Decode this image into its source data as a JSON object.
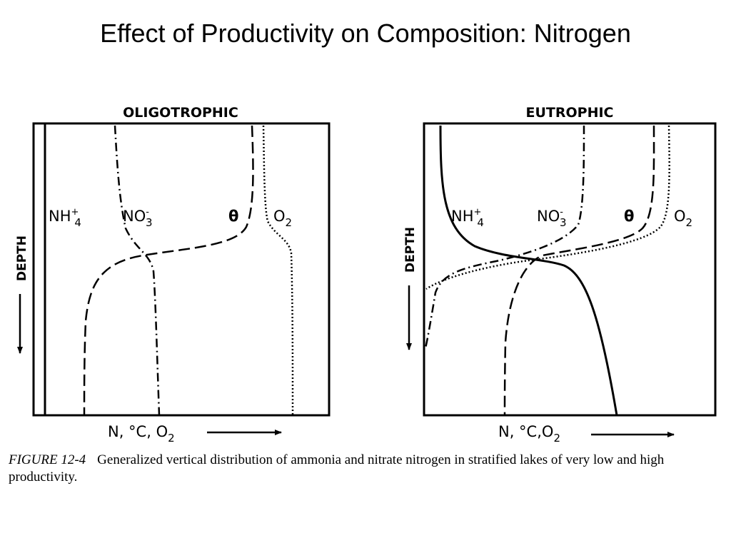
{
  "slide": {
    "title": "Effect of Productivity on Composition: Nitrogen"
  },
  "figure": {
    "panels": [
      {
        "title": "OLIGOTROPHIC",
        "y_axis_label": "DEPTH",
        "x_axis_label": "N, °C, O",
        "x_axis_subscript": "2",
        "curve_labels": {
          "nh4": {
            "base": "NH",
            "sup": "+",
            "sub": "4"
          },
          "no3": {
            "base": "NO",
            "sup": "-",
            "sub": "3"
          },
          "theta": {
            "base": "θ"
          },
          "o2": {
            "base": "O",
            "sub": "2"
          }
        }
      },
      {
        "title": "EUTROPHIC",
        "y_axis_label": "DEPTH",
        "x_axis_label": "N, °C,O",
        "x_axis_subscript": "2",
        "curve_labels": {
          "nh4": {
            "base": "NH",
            "sup": "+",
            "sub": "4"
          },
          "no3": {
            "base": "NO",
            "sup": "-",
            "sub": "3"
          },
          "theta": {
            "base": "θ"
          },
          "o2": {
            "base": "O",
            "sub": "2"
          }
        }
      }
    ],
    "line_styles": {
      "nh4": "solid",
      "no3": "dash-dot",
      "theta": "dashed",
      "o2": "dotted"
    }
  },
  "caption": {
    "figure_number": "FIGURE 12-4",
    "text": "Generalized vertical distribution of ammonia and nitrate nitrogen in stratified lakes of very low and high productivity."
  }
}
